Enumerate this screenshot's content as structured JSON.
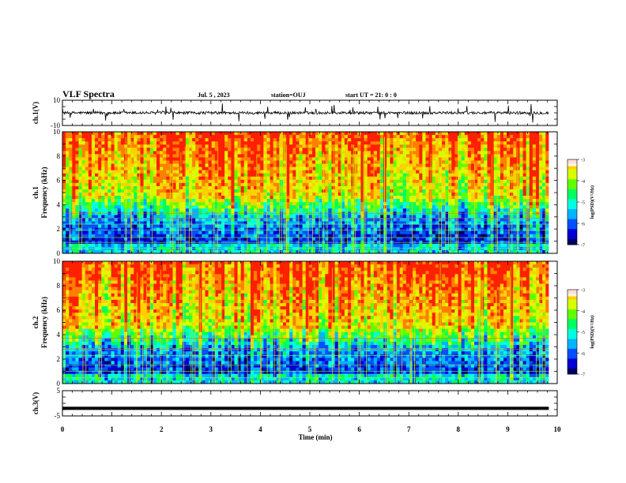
{
  "header": {
    "title": "VLF Spectra",
    "date": "Jul. 5 , 2023",
    "station": "station=OUJ",
    "start": "start UT = 21: 0 : 0"
  },
  "colormap": [
    "#000060",
    "#0000d0",
    "#0050ff",
    "#00b4ff",
    "#00ffe0",
    "#00ff60",
    "#60ff00",
    "#d8ff00",
    "#ffd000",
    "#ff8000",
    "#ff2000"
  ],
  "chart_data": [
    {
      "type": "line",
      "id": "ch1-waveform",
      "ylabel": "ch.1(V)",
      "ylim": [
        -10,
        10
      ],
      "ytick_labels": [
        "10",
        "-10"
      ],
      "xlim": [
        0,
        10
      ],
      "baseline": 0,
      "amplitude": 1,
      "line_color": "#000000"
    },
    {
      "type": "heatmap",
      "id": "ch1-spectrogram",
      "ylabel_top": "ch.1",
      "ylabel": "Frequency (kHz)",
      "ylim": [
        0,
        10
      ],
      "ytick_labels": [
        "0",
        "2",
        "4",
        "6",
        "8",
        "10"
      ],
      "xlim": [
        0,
        9.83
      ],
      "colorbar": {
        "label": "log(PSD)(V²/Hz)",
        "range": [
          -7,
          -3
        ],
        "tick_labels": [
          "-3",
          "-4",
          "-5",
          "-6",
          "-7"
        ]
      }
    },
    {
      "type": "heatmap",
      "id": "ch2-spectrogram",
      "ylabel_top": "ch.2",
      "ylabel": "Frequency (kHz)",
      "ylim": [
        0,
        10
      ],
      "ytick_labels": [
        "0",
        "2",
        "4",
        "6",
        "8",
        "10"
      ],
      "xlim": [
        0,
        9.83
      ],
      "colorbar": {
        "label": "log(PSD)(V²/Hz)",
        "range": [
          -7,
          -3
        ],
        "tick_labels": [
          "-3",
          "-4",
          "-5",
          "-6",
          "-7"
        ]
      }
    },
    {
      "type": "line",
      "id": "ch3-waveform",
      "ylabel": "ch.3(V)",
      "ylim": [
        -5,
        5
      ],
      "ytick_labels": [
        "5",
        "-5"
      ],
      "xlim": [
        0,
        10
      ],
      "baseline": -2,
      "line_color": "#000000"
    }
  ],
  "xaxis": {
    "label": "Time (min)",
    "tick_labels": [
      "0",
      "1",
      "2",
      "3",
      "4",
      "5",
      "6",
      "7",
      "8",
      "9",
      "10"
    ]
  }
}
